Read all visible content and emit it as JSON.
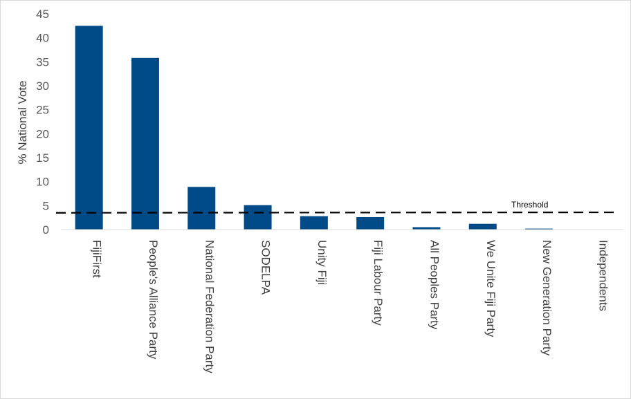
{
  "chart_data": {
    "type": "bar",
    "title": "",
    "xlabel": "",
    "ylabel": "% National Vote",
    "ylim": [
      0,
      45
    ],
    "yticks": [
      0,
      5,
      10,
      15,
      20,
      25,
      30,
      35,
      40,
      45
    ],
    "grid": false,
    "categories": [
      "FijiFirst",
      "People's Alliance Party",
      "National Federation Party",
      "SODELPA",
      "Unity Fiji",
      "Fiji Labour Party",
      "All Peoples Party",
      "We Unite Fiji Party",
      "New Generation Party",
      "Independents"
    ],
    "values": [
      42.5,
      35.8,
      8.9,
      5.1,
      2.8,
      2.6,
      0.5,
      1.2,
      0.2,
      0.0
    ],
    "bar_color": "#004A87",
    "threshold": {
      "label": "Threshold",
      "value": 3.6,
      "start_value": 3.5,
      "style": "dashed",
      "color": "#000000"
    }
  }
}
